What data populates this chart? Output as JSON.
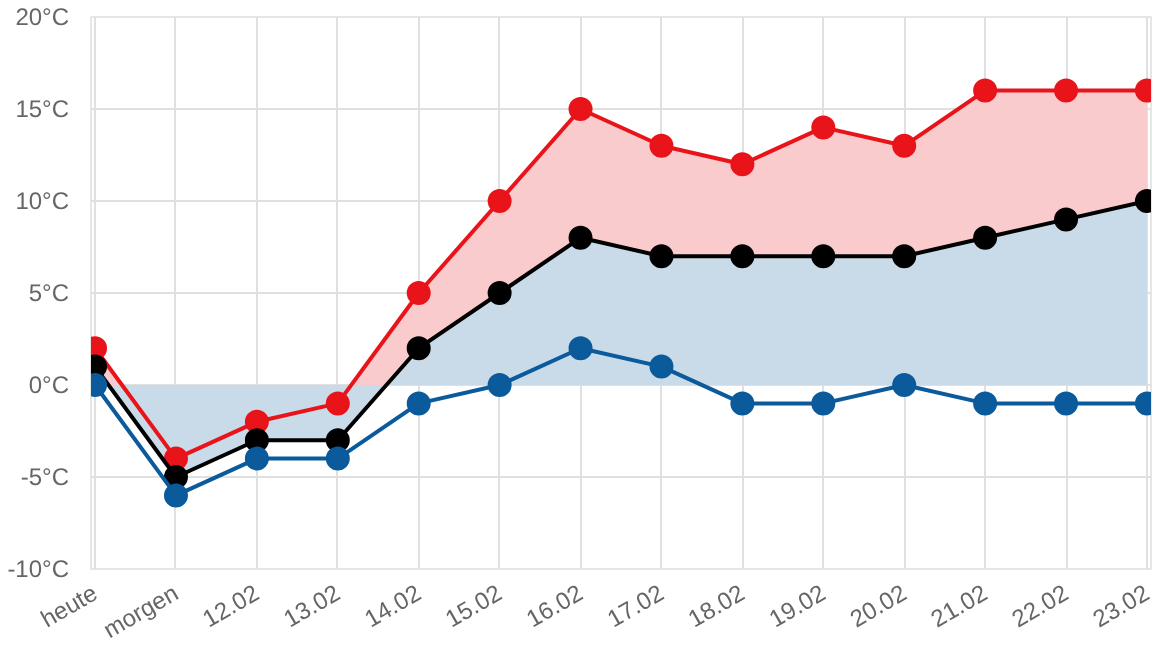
{
  "chart_data": {
    "type": "line",
    "categories": [
      "heute",
      "morgen",
      "12.02",
      "13.02",
      "14.02",
      "15.02",
      "16.02",
      "17.02",
      "18.02",
      "19.02",
      "20.02",
      "21.02",
      "22.02",
      "23.02"
    ],
    "series": [
      {
        "type": "area",
        "color": "#e8141a",
        "values": [
          2,
          -4,
          -2,
          -1,
          5,
          10,
          15,
          13,
          12,
          14,
          13,
          16,
          16,
          16
        ]
      },
      {
        "type": "area",
        "color": "#000000",
        "values": [
          1,
          -5,
          -3,
          -3,
          2,
          5,
          8,
          7,
          7,
          7,
          7,
          8,
          9,
          10
        ]
      },
      {
        "color": "#0a5a9c",
        "values": [
          0,
          -6,
          -4,
          -4,
          -1,
          0,
          2,
          1,
          -1,
          -1,
          0,
          -1,
          -1,
          -1
        ]
      }
    ],
    "ylim": [
      -10,
      20
    ],
    "yticks": [
      {
        "value": -10,
        "label": "-10°C"
      },
      {
        "value": -5,
        "label": "-5°C"
      },
      {
        "value": 0,
        "label": "0°C"
      },
      {
        "value": 5,
        "label": "5°C"
      },
      {
        "value": 10,
        "label": "10°C"
      },
      {
        "value": 15,
        "label": "15°C"
      },
      {
        "value": 20,
        "label": "20°C"
      }
    ],
    "grid": true,
    "marker": "circle",
    "line_style": "solid"
  }
}
